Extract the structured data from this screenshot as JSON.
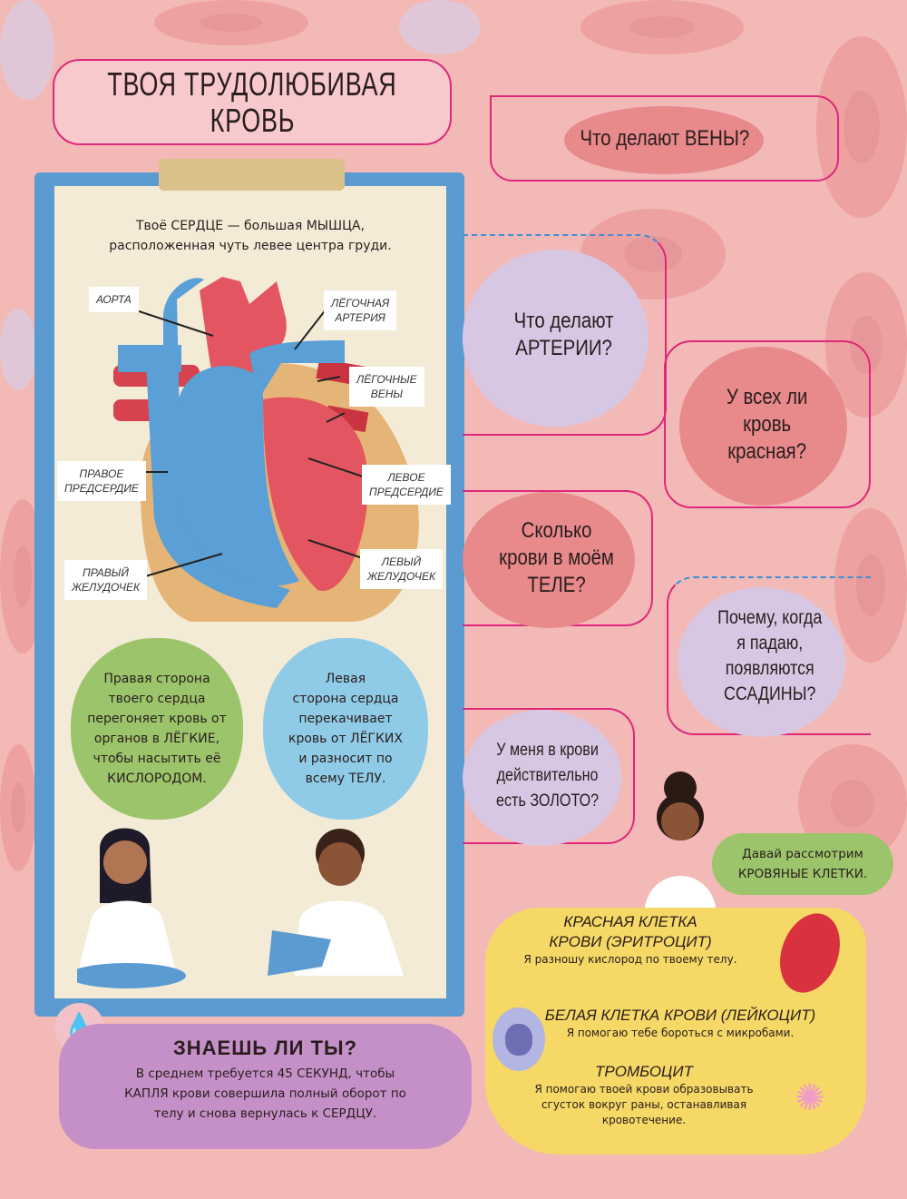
{
  "title": {
    "line1": "ТВОЯ ТРУДОЛЮБИВАЯ",
    "line2": "КРОВЬ"
  },
  "clipboard": {
    "intro": "Твоё СЕРДЦЕ — большая МЫШЦА,\nрасположенная чуть левее центра груди.",
    "labels": {
      "aorta": "АОРТА",
      "pulmonary_artery": "ЛЁГОЧНАЯ\nАРТЕРИЯ",
      "pulmonary_veins": "ЛЁГОЧНЫЕ\nВЕНЫ",
      "right_atrium": "ПРАВОЕ\nПРЕДСЕРДИЕ",
      "left_atrium": "ЛЕВОЕ\nПРЕДСЕРДИЕ",
      "right_ventricle": "ПРАВЫЙ\nЖЕЛУДОЧЕК",
      "left_ventricle": "ЛЕВЫЙ\nЖЕЛУДОЧЕК"
    },
    "bubble_right_side": "Правая сторона\nтвоего сердца\nперегоняет кровь от\nорганов в ЛЁГКИЕ,\nчтобы насытить её\nКИСЛОРОДОМ.",
    "bubble_left_side": "Левая\nсторона сердца\nперекачивает\nкровь от ЛЁГКИХ\nи разносит по\nвсему ТЕЛУ."
  },
  "did_you_know": {
    "title": "ЗНАЕШЬ ЛИ ТЫ?",
    "text": "В среднем требуется 45 СЕКУНД, чтобы\nКАПЛЯ крови совершила полный оборот по\nтелу и снова вернулась к СЕРДЦУ."
  },
  "questions": [
    "Что делают ВЕНЫ?",
    "Что делают\nАРТЕРИИ?",
    "У всех ли\nкровь\nкрасная?",
    "Сколько\nкрови в моём\nТЕЛЕ?",
    "Почему, когда\nя падаю,\nпоявляются\nССАДИНЫ?",
    "У меня в крови\nдействительно\nесть ЗОЛОТО?"
  ],
  "girl_bubble": "Давай рассмотрим\nКРОВЯНЫЕ КЛЕТКИ.",
  "cells": [
    {
      "name": "КРАСНАЯ КЛЕТКА\nКРОВИ (ЭРИТРОЦИТ)",
      "desc": "Я разношу кислород по твоему телу."
    },
    {
      "name": "БЕЛАЯ КЛЕТКА КРОВИ (ЛЕЙКОЦИТ)",
      "desc": "Я помогаю тебе бороться с микробами."
    },
    {
      "name": "ТРОМБОЦИТ",
      "desc": "Я помогаю твоей крови образовывать\nсгусток вокруг раны, останавливая\nкровотечение."
    }
  ],
  "colors": {
    "background": "#f2b9b7",
    "accent_line": "#e0287a",
    "clipboard": "#5b9bd1",
    "green": "#9cc46b",
    "blue": "#8fcbe6",
    "purple": "#c590c7",
    "yellow": "#f5d865",
    "red_cell": "#d8323e"
  }
}
